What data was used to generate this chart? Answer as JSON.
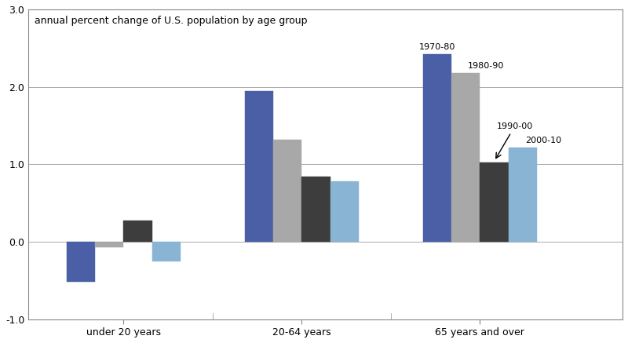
{
  "title": "annual percent change of U.S. population by age group",
  "categories": [
    "under 20 years",
    "20-64 years",
    "65 years and over"
  ],
  "series_labels": [
    "1970-80",
    "1980-90",
    "1990-00",
    "2000-10"
  ],
  "values": [
    [
      -0.52,
      -0.07,
      0.27,
      -0.25
    ],
    [
      1.95,
      1.32,
      0.84,
      0.78
    ],
    [
      2.42,
      2.18,
      1.02,
      1.22
    ]
  ],
  "colors": [
    "#4a5fa5",
    "#a8a8a8",
    "#3d3d3d",
    "#8ab4d4"
  ],
  "ylim": [
    -1.0,
    3.0
  ],
  "yticks": [
    -1.0,
    0.0,
    1.0,
    2.0,
    3.0
  ],
  "ytick_labels": [
    "-1.0",
    "0.0",
    "1.0",
    "2.0",
    "3.0"
  ],
  "bar_width": 0.12,
  "group_centers": [
    0.25,
    1.0,
    1.75
  ],
  "background_color": "#ffffff",
  "border_color": "#888888",
  "gridline_color": "#888888",
  "tick_label_fontsize": 9,
  "title_fontsize": 9,
  "annotation_fontsize": 8,
  "xlim": [
    -0.15,
    2.35
  ]
}
